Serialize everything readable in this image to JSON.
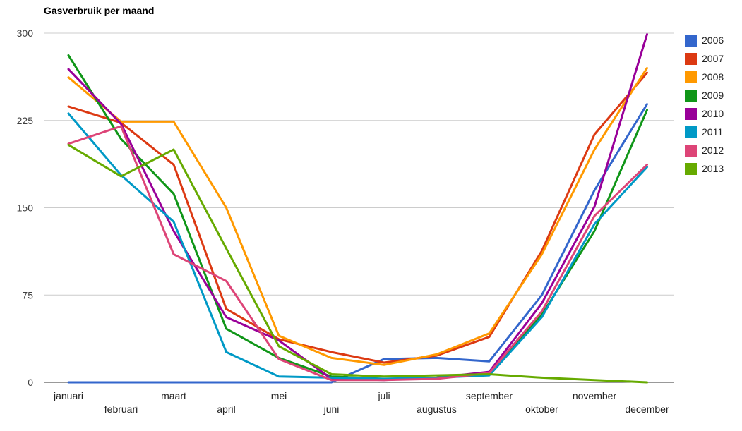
{
  "title": "Gasverbruik per maand",
  "chart_data": {
    "type": "line",
    "title": "Gasverbruik per maand",
    "categories": [
      "januari",
      "februari",
      "maart",
      "april",
      "mei",
      "juni",
      "juli",
      "augustus",
      "september",
      "oktober",
      "november",
      "december"
    ],
    "xlabel": "",
    "ylabel": "",
    "ylim": [
      0,
      300
    ],
    "yticks": [
      0,
      75,
      150,
      225,
      300
    ],
    "grid": true,
    "legend_position": "right",
    "colors": {
      "grid_line": "#cccccc",
      "zero_line": "#333333",
      "y_tick_text": "#404040",
      "x_tick_text": "#222222",
      "title_text": "#000000"
    },
    "series": [
      {
        "name": "2006",
        "color": "#3366cc",
        "values": [
          0,
          0,
          0,
          0,
          0,
          0,
          20,
          21,
          18,
          75,
          165,
          239
        ]
      },
      {
        "name": "2007",
        "color": "#dc3912",
        "values": [
          237,
          223,
          187,
          63,
          37,
          26,
          17,
          23,
          39,
          113,
          213,
          266
        ]
      },
      {
        "name": "2008",
        "color": "#ff9900",
        "values": [
          262,
          224,
          224,
          150,
          40,
          21,
          15,
          24,
          42,
          110,
          200,
          270
        ]
      },
      {
        "name": "2009",
        "color": "#109618",
        "values": [
          281,
          209,
          162,
          46,
          21,
          5,
          3,
          4,
          7,
          58,
          130,
          234
        ]
      },
      {
        "name": "2010",
        "color": "#990099",
        "values": [
          269,
          222,
          130,
          56,
          36,
          3,
          2,
          4,
          9,
          68,
          151,
          299
        ]
      },
      {
        "name": "2011",
        "color": "#0099c6",
        "values": [
          231,
          178,
          138,
          26,
          5,
          4,
          3,
          4,
          6,
          56,
          136,
          185
        ]
      },
      {
        "name": "2012",
        "color": "#dd4477",
        "values": [
          205,
          220,
          110,
          87,
          20,
          2,
          2,
          3,
          8,
          61,
          143,
          187
        ]
      },
      {
        "name": "2013",
        "color": "#66aa00",
        "values": [
          204,
          177,
          200,
          115,
          31,
          7,
          5,
          6,
          7,
          4,
          2,
          0
        ]
      }
    ]
  }
}
